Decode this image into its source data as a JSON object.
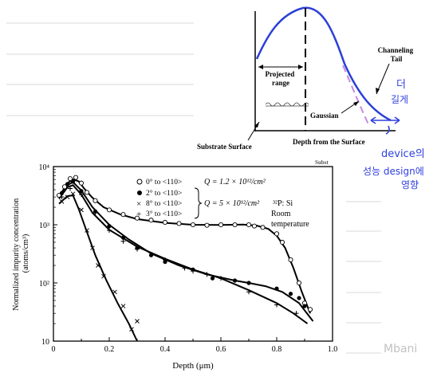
{
  "notes_lines": true,
  "diagram": {
    "labels": {
      "channeling_tail": "Channeling\nTail",
      "projected_range": "Projected\nrange",
      "gaussian": "Gaussian",
      "substrate_surface": "Substrate Surface",
      "depth_from_surface": "Depth from the Surface",
      "cut_text": "Subst"
    },
    "colors": {
      "curve": "#2b3fd6",
      "gaussian": "#c58be0",
      "handwriting": "#2f3fe0"
    }
  },
  "handwriting": {
    "note1": "더",
    "note2": "길게",
    "note3": "device의",
    "note4": "성능 design에",
    "note5": "영향"
  },
  "watermark": "Mbani",
  "chart_data": {
    "type": "scatter",
    "xlabel": "Depth (μm)",
    "ylabel": "Normalized impurity concentration\n(atoms/cm³)",
    "xlim": [
      0,
      1.0
    ],
    "ylim": [
      10,
      10000
    ],
    "yscale": "log",
    "x_ticks": [
      "0",
      "0.2",
      "0.4",
      "0.6",
      "0.8",
      "1.0"
    ],
    "y_ticks": [
      "10",
      "10²",
      "10³",
      "10⁴"
    ],
    "legend": [
      {
        "marker": "○",
        "label": "0° to <110>"
      },
      {
        "marker": "●",
        "label": "2° to <110>"
      },
      {
        "marker": "×",
        "label": "8° to <110>"
      },
      {
        "marker": "+",
        "label": "3° to <110>"
      }
    ],
    "annotations": {
      "q1": "Q = 1.2 × 10¹²/cm²",
      "q2": "Q = 5 × 10¹²/cm²",
      "species": "³²P: Si",
      "room": "Room",
      "temperature": "temperature"
    },
    "series": [
      {
        "marker": "open-circle",
        "values": [
          [
            0.02,
            3200
          ],
          [
            0.04,
            4500
          ],
          [
            0.06,
            6200
          ],
          [
            0.08,
            6500
          ],
          [
            0.1,
            5200
          ],
          [
            0.12,
            3600
          ],
          [
            0.15,
            2600
          ],
          [
            0.2,
            1800
          ],
          [
            0.25,
            1500
          ],
          [
            0.3,
            1300
          ],
          [
            0.35,
            1200
          ],
          [
            0.4,
            1100
          ],
          [
            0.45,
            1050
          ],
          [
            0.5,
            1000
          ],
          [
            0.55,
            980
          ],
          [
            0.6,
            1000
          ],
          [
            0.65,
            1000
          ],
          [
            0.7,
            1000
          ],
          [
            0.72,
            950
          ],
          [
            0.75,
            900
          ],
          [
            0.8,
            700
          ],
          [
            0.82,
            500
          ],
          [
            0.85,
            250
          ],
          [
            0.88,
            100
          ],
          [
            0.9,
            45
          ],
          [
            0.92,
            35
          ]
        ]
      },
      {
        "marker": "filled-circle",
        "values": [
          [
            0.03,
            3500
          ],
          [
            0.05,
            5000
          ],
          [
            0.07,
            5500
          ],
          [
            0.1,
            3800
          ],
          [
            0.15,
            1700
          ],
          [
            0.2,
            950
          ],
          [
            0.25,
            600
          ],
          [
            0.3,
            400
          ],
          [
            0.35,
            300
          ],
          [
            0.4,
            230
          ],
          [
            0.5,
            170
          ],
          [
            0.57,
            120
          ],
          [
            0.65,
            110
          ],
          [
            0.7,
            100
          ],
          [
            0.8,
            80
          ],
          [
            0.85,
            65
          ],
          [
            0.88,
            55
          ],
          [
            0.9,
            40
          ]
        ]
      },
      {
        "marker": "cross",
        "values": [
          [
            0.03,
            2500
          ],
          [
            0.05,
            3000
          ],
          [
            0.07,
            3400
          ],
          [
            0.1,
            1800
          ],
          [
            0.12,
            800
          ],
          [
            0.14,
            400
          ],
          [
            0.16,
            200
          ],
          [
            0.18,
            130
          ],
          [
            0.22,
            70
          ],
          [
            0.25,
            40
          ],
          [
            0.28,
            16
          ],
          [
            0.3,
            22
          ]
        ]
      },
      {
        "marker": "plus",
        "values": [
          [
            0.03,
            3000
          ],
          [
            0.06,
            4200
          ],
          [
            0.1,
            3300
          ],
          [
            0.15,
            1600
          ],
          [
            0.2,
            800
          ],
          [
            0.25,
            520
          ],
          [
            0.3,
            380
          ],
          [
            0.4,
            250
          ],
          [
            0.47,
            180
          ],
          [
            0.5,
            160
          ],
          [
            0.55,
            140
          ],
          [
            0.6,
            120
          ],
          [
            0.7,
            70
          ],
          [
            0.8,
            42
          ],
          [
            0.87,
            30
          ]
        ]
      }
    ]
  }
}
